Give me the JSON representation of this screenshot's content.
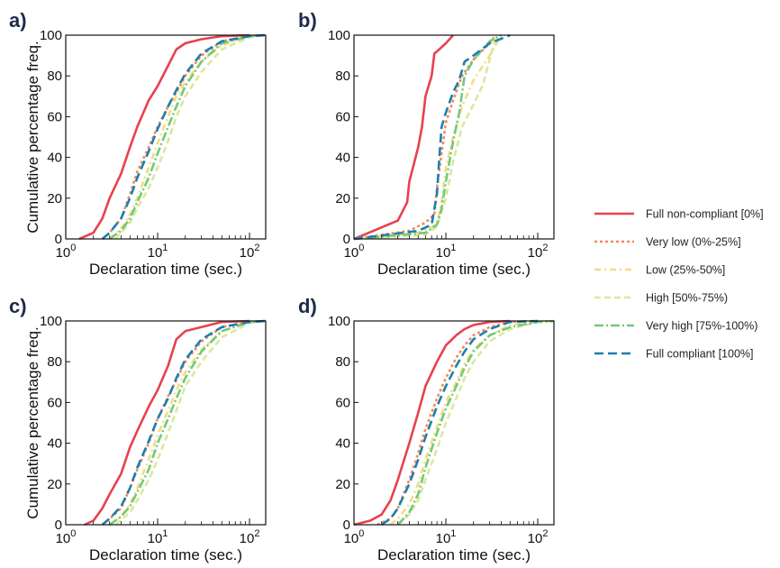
{
  "legend": [
    {
      "key": "full_non",
      "label": "Full non-compliant [0%]",
      "color": "#e8414f",
      "dash": ""
    },
    {
      "key": "very_low",
      "label": "Very low (0%-25%]",
      "color": "#f58a55",
      "dash": "3,3"
    },
    {
      "key": "low",
      "label": "Low (25%-50%]",
      "color": "#f3dc82",
      "dash": "7,4,2,4"
    },
    {
      "key": "high",
      "label": "High [50%-75%)",
      "color": "#dbe89a",
      "dash": "7,4"
    },
    {
      "key": "very_high",
      "label": "Very high [75%-100%)",
      "color": "#72c97a",
      "dash": "10,3,2,3"
    },
    {
      "key": "full_comp",
      "label": "Full compliant [100%]",
      "color": "#1d7fb0",
      "dash": "10,5"
    }
  ],
  "chart_data": [
    {
      "panel": "a)",
      "type": "line",
      "xlabel": "Declaration time (sec.)",
      "ylabel": "Cumulative percentage freq.",
      "xscale": "log",
      "xlim": [
        1,
        150
      ],
      "ylim": [
        0,
        100
      ],
      "xticks": [
        {
          "base": "10",
          "exp": "0",
          "value": 1
        },
        {
          "base": "10",
          "exp": "1",
          "value": 10
        },
        {
          "base": "10",
          "exp": "2",
          "value": 100
        }
      ],
      "yticks": [
        "0",
        "20",
        "40",
        "60",
        "80",
        "100"
      ],
      "series": [
        {
          "key": "full_non",
          "name": "Full non-compliant [0%]",
          "x": [
            1.4,
            2,
            2.5,
            3,
            4,
            5,
            6,
            8,
            10,
            13,
            16,
            20,
            30,
            50,
            100
          ],
          "y": [
            0,
            3,
            10,
            20,
            32,
            45,
            55,
            68,
            75,
            85,
            93,
            96,
            98,
            99.5,
            100
          ]
        },
        {
          "key": "very_low",
          "name": "Very low (0%-25%]",
          "x": [
            2.5,
            3,
            4,
            5,
            6,
            8,
            10,
            13,
            16,
            20,
            30,
            50,
            100,
            150
          ],
          "y": [
            0,
            3,
            10,
            22,
            33,
            45,
            55,
            65,
            72,
            80,
            90,
            97,
            99.5,
            100
          ]
        },
        {
          "key": "low",
          "name": "Low (25%-50%]",
          "x": [
            3,
            4,
            5,
            6,
            8,
            10,
            13,
            16,
            20,
            30,
            50,
            100,
            150
          ],
          "y": [
            0,
            5,
            12,
            20,
            35,
            47,
            60,
            70,
            77,
            87,
            95,
            99.5,
            100
          ]
        },
        {
          "key": "high",
          "name": "High [50%-75%)",
          "x": [
            3.5,
            5,
            6,
            8,
            10,
            13,
            16,
            20,
            30,
            50,
            100,
            150
          ],
          "y": [
            0,
            8,
            15,
            25,
            35,
            48,
            60,
            70,
            82,
            93,
            99,
            100
          ]
        },
        {
          "key": "very_high",
          "name": "Very high [75%-100%)",
          "x": [
            3,
            4,
            5,
            6,
            8,
            10,
            13,
            16,
            20,
            30,
            50,
            100,
            150
          ],
          "y": [
            0,
            4,
            10,
            18,
            30,
            42,
            55,
            65,
            75,
            87,
            96,
            99.5,
            100
          ]
        },
        {
          "key": "full_comp",
          "name": "Full compliant [100%]",
          "x": [
            2.5,
            3,
            4,
            5,
            6,
            8,
            10,
            13,
            16,
            20,
            30,
            50,
            100,
            150
          ],
          "y": [
            0,
            3,
            10,
            20,
            30,
            43,
            54,
            65,
            73,
            81,
            91,
            97,
            99.5,
            100
          ]
        }
      ]
    },
    {
      "panel": "b)",
      "type": "line",
      "xlabel": "Declaration time (sec.)",
      "ylabel": "",
      "xscale": "log",
      "xlim": [
        1,
        150
      ],
      "ylim": [
        0,
        100
      ],
      "xticks": [
        {
          "base": "10",
          "exp": "0",
          "value": 1
        },
        {
          "base": "10",
          "exp": "1",
          "value": 10
        },
        {
          "base": "10",
          "exp": "2",
          "value": 100
        }
      ],
      "yticks": [
        "0",
        "20",
        "40",
        "60",
        "80",
        "100"
      ],
      "series": [
        {
          "key": "full_non",
          "name": "Full non-compliant [0%]",
          "x": [
            1,
            3,
            3.8,
            4,
            5,
            5.5,
            6,
            7,
            7.5,
            8,
            10,
            12
          ],
          "y": [
            0,
            9,
            18,
            28,
            45,
            55,
            70,
            80,
            91,
            92,
            96,
            100
          ]
        },
        {
          "key": "very_low",
          "name": "Very low (0%-25%]",
          "x": [
            1,
            4,
            6,
            7.5,
            8,
            9,
            10,
            12,
            15,
            20,
            30,
            35
          ],
          "y": [
            0,
            4,
            8,
            12,
            25,
            42,
            57,
            68,
            80,
            88,
            96,
            100
          ]
        },
        {
          "key": "low",
          "name": "Low (25%-50%]",
          "x": [
            1,
            5,
            8,
            9,
            10,
            12,
            15,
            20,
            30,
            40
          ],
          "y": [
            0,
            3,
            7,
            18,
            35,
            50,
            65,
            78,
            90,
            100
          ]
        },
        {
          "key": "high",
          "name": "High [50%-75%)",
          "x": [
            1,
            6,
            8,
            10,
            12,
            15,
            20,
            25,
            30,
            35
          ],
          "y": [
            0,
            2,
            6,
            20,
            38,
            55,
            66,
            75,
            88,
            100
          ]
        },
        {
          "key": "very_high",
          "name": "Very high [75%-100%)",
          "x": [
            1,
            6,
            8,
            9,
            10,
            12,
            14,
            16,
            20,
            30,
            40
          ],
          "y": [
            0,
            3,
            7,
            15,
            28,
            48,
            62,
            80,
            88,
            97,
            100
          ]
        },
        {
          "key": "full_comp",
          "name": "Full compliant [100%]",
          "x": [
            1,
            5,
            7,
            8,
            8.5,
            9,
            10,
            12,
            14,
            16,
            20,
            30,
            50
          ],
          "y": [
            0,
            4,
            7,
            22,
            40,
            55,
            62,
            72,
            78,
            87,
            90,
            96,
            100
          ]
        }
      ]
    },
    {
      "panel": "c)",
      "type": "line",
      "xlabel": "Declaration time (sec.)",
      "ylabel": "Cumulative percentage freq.",
      "xscale": "log",
      "xlim": [
        1,
        150
      ],
      "ylim": [
        0,
        100
      ],
      "xticks": [
        {
          "base": "10",
          "exp": "0",
          "value": 1
        },
        {
          "base": "10",
          "exp": "1",
          "value": 10
        },
        {
          "base": "10",
          "exp": "2",
          "value": 100
        }
      ],
      "yticks": [
        "0",
        "20",
        "40",
        "60",
        "80",
        "100"
      ],
      "series": [
        {
          "key": "full_non",
          "name": "Full non-compliant [0%]",
          "x": [
            1.6,
            2,
            2.5,
            3,
            4,
            5,
            6,
            8,
            10,
            13,
            16,
            20,
            30,
            50,
            100
          ],
          "y": [
            0,
            2,
            8,
            15,
            25,
            38,
            46,
            58,
            66,
            78,
            91,
            95,
            97,
            99.5,
            100
          ]
        },
        {
          "key": "very_low",
          "name": "Very low (0%-25%]",
          "x": [
            2.5,
            3,
            4,
            5,
            6,
            8,
            10,
            13,
            16,
            20,
            30,
            50,
            100,
            150
          ],
          "y": [
            0,
            3,
            8,
            18,
            27,
            40,
            52,
            63,
            71,
            80,
            90,
            97,
            99.5,
            100
          ]
        },
        {
          "key": "low",
          "name": "Low (25%-50%]",
          "x": [
            3,
            4,
            5,
            6,
            8,
            10,
            13,
            16,
            20,
            30,
            50,
            100,
            150
          ],
          "y": [
            0,
            4,
            10,
            18,
            32,
            44,
            56,
            66,
            75,
            86,
            95,
            99.5,
            100
          ]
        },
        {
          "key": "high",
          "name": "High [50%-75%)",
          "x": [
            3.5,
            5,
            6,
            8,
            10,
            13,
            16,
            20,
            30,
            50,
            100,
            150
          ],
          "y": [
            0,
            6,
            12,
            22,
            32,
            45,
            56,
            68,
            80,
            92,
            99,
            100
          ]
        },
        {
          "key": "very_high",
          "name": "Very high [75%-100%)",
          "x": [
            3,
            4,
            5,
            6,
            8,
            10,
            13,
            16,
            20,
            30,
            50,
            100,
            150
          ],
          "y": [
            0,
            4,
            9,
            16,
            27,
            40,
            52,
            62,
            72,
            85,
            95,
            99.5,
            100
          ]
        },
        {
          "key": "full_comp",
          "name": "Full compliant [100%]",
          "x": [
            2.5,
            3,
            4,
            5,
            6,
            8,
            10,
            13,
            16,
            20,
            30,
            50,
            100,
            150
          ],
          "y": [
            0,
            3,
            9,
            18,
            28,
            41,
            52,
            62,
            72,
            81,
            91,
            97,
            99.5,
            100
          ]
        }
      ]
    },
    {
      "panel": "d)",
      "type": "line",
      "xlabel": "Declaration time (sec.)",
      "ylabel": "",
      "xscale": "log",
      "xlim": [
        1,
        150
      ],
      "ylim": [
        0,
        100
      ],
      "xticks": [
        {
          "base": "10",
          "exp": "0",
          "value": 1
        },
        {
          "base": "10",
          "exp": "1",
          "value": 10
        },
        {
          "base": "10",
          "exp": "2",
          "value": 100
        }
      ],
      "yticks": [
        "0",
        "20",
        "40",
        "60",
        "80",
        "100"
      ],
      "series": [
        {
          "key": "full_non",
          "name": "Full non-compliant [0%]",
          "x": [
            1,
            1.5,
            2,
            2.5,
            3,
            4,
            5,
            6,
            8,
            10,
            13,
            16,
            20,
            30,
            50
          ],
          "y": [
            0,
            2,
            5,
            12,
            22,
            40,
            55,
            68,
            80,
            88,
            93,
            96,
            98,
            99.5,
            100
          ]
        },
        {
          "key": "very_low",
          "name": "Very low (0%-25%]",
          "x": [
            1.8,
            2.5,
            3,
            4,
            5,
            6,
            8,
            10,
            13,
            16,
            20,
            30,
            50,
            100
          ],
          "y": [
            0,
            3,
            8,
            22,
            35,
            47,
            62,
            72,
            82,
            88,
            93,
            97,
            99.5,
            100
          ]
        },
        {
          "key": "low",
          "name": "Low (25%-50%]",
          "x": [
            2.5,
            3,
            4,
            5,
            6,
            8,
            10,
            13,
            16,
            20,
            30,
            50,
            100,
            150
          ],
          "y": [
            0,
            3,
            10,
            20,
            32,
            48,
            60,
            70,
            79,
            86,
            93,
            98,
            99.5,
            100
          ]
        },
        {
          "key": "high",
          "name": "High [50%-75%)",
          "x": [
            3,
            4,
            5,
            6,
            8,
            10,
            13,
            16,
            20,
            30,
            50,
            100,
            150
          ],
          "y": [
            0,
            5,
            12,
            22,
            37,
            50,
            62,
            72,
            80,
            90,
            96,
            99.5,
            100
          ]
        },
        {
          "key": "very_high",
          "name": "Very high [75%-100%)",
          "x": [
            3,
            4,
            5,
            6,
            8,
            10,
            13,
            16,
            20,
            30,
            50,
            100,
            150
          ],
          "y": [
            0,
            6,
            15,
            28,
            45,
            57,
            68,
            77,
            85,
            93,
            97,
            99.5,
            100
          ]
        },
        {
          "key": "full_comp",
          "name": "Full compliant [100%]",
          "x": [
            2,
            2.5,
            3,
            4,
            5,
            6,
            8,
            10,
            13,
            16,
            20,
            30,
            50,
            100
          ],
          "y": [
            0,
            3,
            8,
            20,
            32,
            43,
            58,
            68,
            78,
            85,
            91,
            96,
            99.5,
            100
          ]
        }
      ]
    }
  ]
}
